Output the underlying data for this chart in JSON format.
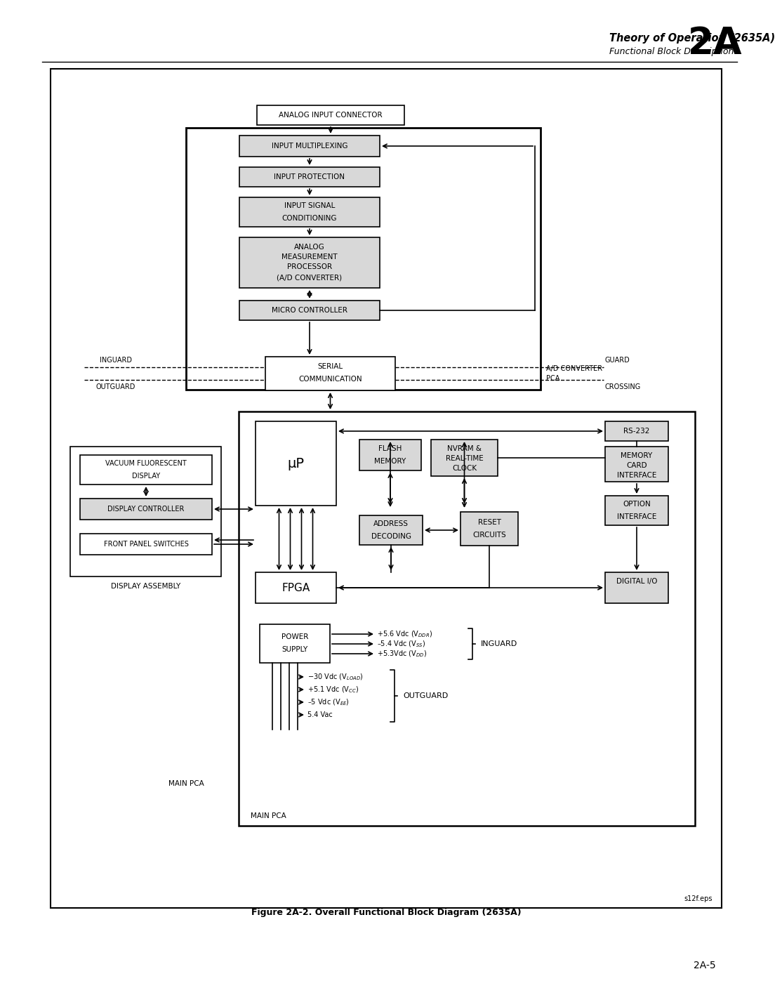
{
  "title_line1": "Theory of Operation (2635A)",
  "title_line2": "Functional Block Description",
  "title_section": "2A",
  "page_number": "2A-5",
  "figure_caption": "Figure 2A-2. Overall Functional Block Diagram (2635A)",
  "watermark": "s12f.eps",
  "bg_color": "#ffffff"
}
